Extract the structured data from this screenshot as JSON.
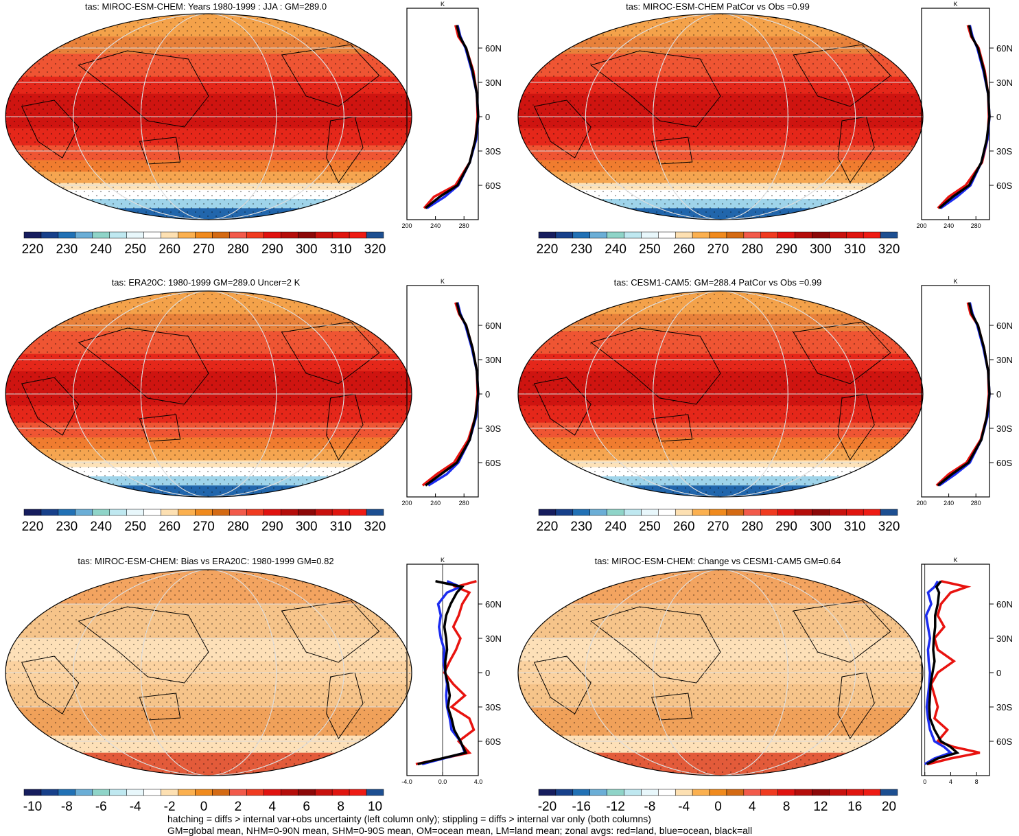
{
  "chart_data": [
    {
      "type": "heatmap",
      "title": "tas: MIROC-ESM-CHEM: Years 1980-1999 : JJA : GM=289.0",
      "colorbar": {
        "ticks": [
          "220",
          "230",
          "240",
          "250",
          "260",
          "270",
          "280",
          "290",
          "300",
          "310",
          "320"
        ],
        "palette": "absolute"
      },
      "zonal": {
        "xticks": [
          "200",
          "240",
          "280"
        ],
        "xlim": [
          200,
          300
        ],
        "xunit": "K",
        "yticks": [
          "60N",
          "30N",
          "0",
          "30S",
          "60S"
        ],
        "series": [
          {
            "name": "land",
            "color": "#e8130f",
            "lat": [
              80,
              70,
              60,
              40,
              20,
              0,
              -20,
              -40,
              -60,
              -70,
              -80
            ],
            "values": [
              268,
              272,
              283,
              293,
              298,
              299,
              296,
              288,
              268,
              238,
              224
            ]
          },
          {
            "name": "ocean",
            "color": "#1c2cf0",
            "lat": [
              80,
              70,
              60,
              40,
              20,
              0,
              -20,
              -40,
              -60,
              -70,
              -80
            ],
            "values": [
              271,
              275,
              282,
              291,
              298,
              300,
              297,
              288,
              272,
              253,
              228
            ]
          },
          {
            "name": "all",
            "color": "#000000",
            "lat": [
              80,
              70,
              60,
              40,
              20,
              0,
              -20,
              -40,
              -60,
              -70,
              -80
            ],
            "values": [
              270,
              274,
              283,
              292,
              298,
              300,
              296,
              288,
              271,
              246,
              226
            ]
          }
        ]
      }
    },
    {
      "type": "heatmap",
      "title": "tas: MIROC-ESM-CHEM PatCor vs Obs =0.99",
      "colorbar": {
        "ticks": [
          "220",
          "230",
          "240",
          "250",
          "260",
          "270",
          "280",
          "290",
          "300",
          "310",
          "320"
        ],
        "palette": "absolute"
      },
      "zonal": {
        "xticks": [
          "200",
          "240",
          "280"
        ],
        "xlim": [
          200,
          300
        ],
        "xunit": "K",
        "yticks": [
          "60N",
          "30N",
          "0",
          "30S",
          "60S"
        ],
        "series": [
          {
            "name": "land",
            "color": "#e8130f",
            "lat": [
              80,
              70,
              60,
              40,
              20,
              0,
              -20,
              -40,
              -60,
              -70,
              -80
            ],
            "values": [
              268,
              273,
              284,
              293,
              298,
              299,
              297,
              289,
              265,
              240,
              224
            ]
          },
          {
            "name": "ocean",
            "color": "#1c2cf0",
            "lat": [
              80,
              70,
              60,
              40,
              20,
              0,
              -20,
              -40,
              -60,
              -70,
              -80
            ],
            "values": [
              271,
              275,
              282,
              291,
              298,
              300,
              297,
              288,
              272,
              252,
              228
            ]
          },
          {
            "name": "all",
            "color": "#000000",
            "lat": [
              80,
              70,
              60,
              40,
              20,
              0,
              -20,
              -40,
              -60,
              -70,
              -80
            ],
            "values": [
              270,
              274,
              283,
              292,
              298,
              300,
              296,
              288,
              270,
              246,
              226
            ]
          }
        ]
      }
    },
    {
      "type": "heatmap",
      "title": "tas: ERA20C: 1980-1999 GM=289.0 Uncer=2 K",
      "colorbar": {
        "ticks": [
          "220",
          "230",
          "240",
          "250",
          "260",
          "270",
          "280",
          "290",
          "300",
          "310",
          "320"
        ],
        "palette": "absolute"
      },
      "zonal": {
        "xticks": [
          "200",
          "240",
          "280"
        ],
        "xlim": [
          200,
          300
        ],
        "xunit": "K",
        "yticks": [
          "60N",
          "30N",
          "0",
          "30S",
          "60S"
        ],
        "series": [
          {
            "name": "land",
            "color": "#e8130f",
            "lat": [
              80,
              70,
              60,
              40,
              20,
              0,
              -20,
              -40,
              -60,
              -70,
              -80
            ],
            "values": [
              268,
              273,
              283,
              292,
              298,
              299,
              296,
              286,
              266,
              242,
              222
            ]
          },
          {
            "name": "ocean",
            "color": "#1c2cf0",
            "lat": [
              80,
              70,
              60,
              40,
              20,
              0,
              -20,
              -40,
              -60,
              -70,
              -80
            ],
            "values": [
              271,
              275,
              282,
              291,
              298,
              300,
              297,
              288,
              272,
              256,
              230
            ]
          },
          {
            "name": "all",
            "color": "#000000",
            "lat": [
              80,
              70,
              60,
              40,
              20,
              0,
              -20,
              -40,
              -60,
              -70,
              -80
            ],
            "values": [
              270,
              274,
              283,
              292,
              298,
              300,
              296,
              288,
              270,
              248,
              226
            ]
          }
        ]
      }
    },
    {
      "type": "heatmap",
      "title": "tas: CESM1-CAM5: GM=288.4 PatCor vs Obs =0.99",
      "colorbar": {
        "ticks": [
          "220",
          "230",
          "240",
          "250",
          "260",
          "270",
          "280",
          "290",
          "300",
          "310",
          "320"
        ],
        "palette": "absolute"
      },
      "zonal": {
        "xticks": [
          "200",
          "240",
          "280"
        ],
        "xlim": [
          200,
          300
        ],
        "xunit": "K",
        "yticks": [
          "60N",
          "30N",
          "0",
          "30S",
          "60S"
        ],
        "series": [
          {
            "name": "land",
            "color": "#e8130f",
            "lat": [
              80,
              70,
              60,
              40,
              20,
              0,
              -20,
              -40,
              -60,
              -70,
              -80
            ],
            "values": [
              268,
              272,
              283,
              292,
              298,
              299,
              296,
              287,
              266,
              240,
              222
            ]
          },
          {
            "name": "ocean",
            "color": "#1c2cf0",
            "lat": [
              80,
              70,
              60,
              40,
              20,
              0,
              -20,
              -40,
              -60,
              -70,
              -80
            ],
            "values": [
              271,
              275,
              282,
              291,
              298,
              300,
              297,
              288,
              271,
              250,
              226
            ]
          },
          {
            "name": "all",
            "color": "#000000",
            "lat": [
              80,
              70,
              60,
              40,
              20,
              0,
              -20,
              -40,
              -60,
              -70,
              -80
            ],
            "values": [
              270,
              274,
              283,
              292,
              298,
              300,
              296,
              288,
              269,
              245,
              224
            ]
          }
        ]
      }
    },
    {
      "type": "heatmap",
      "title": "tas: MIROC-ESM-CHEM: Bias vs ERA20C: 1980-1999 GM=0.82",
      "colorbar": {
        "ticks": [
          "-10",
          "-8",
          "-6",
          "-4",
          "-2",
          "0",
          "2",
          "4",
          "6",
          "8",
          "10"
        ],
        "palette": "diff"
      },
      "zonal": {
        "xticks": [
          "-4.0",
          "0.0",
          "4.0"
        ],
        "xlim": [
          -4,
          4
        ],
        "xunit": "K",
        "yticks": [
          "60N",
          "30N",
          "0",
          "30S",
          "60S"
        ],
        "series": [
          {
            "name": "land",
            "color": "#e8130f",
            "lat": [
              80,
              75,
              70,
              60,
              50,
              40,
              30,
              20,
              10,
              0,
              -10,
              -20,
              -30,
              -40,
              -50,
              -60,
              -70,
              -80
            ],
            "values": [
              3.8,
              1.5,
              3.0,
              2.2,
              1.8,
              1.2,
              2.0,
              1.5,
              0.8,
              0.2,
              1.2,
              2.5,
              1.0,
              3.0,
              3.5,
              1.8,
              3.0,
              -3.0
            ]
          },
          {
            "name": "ocean",
            "color": "#1c2cf0",
            "lat": [
              80,
              75,
              70,
              60,
              50,
              40,
              30,
              20,
              10,
              0,
              -10,
              -20,
              -30,
              -40,
              -50,
              -60,
              -70,
              -80
            ],
            "values": [
              0.5,
              2.0,
              0.5,
              -0.5,
              -0.2,
              -0.4,
              -0.2,
              0.2,
              0.1,
              0.3,
              0.5,
              0.4,
              0.5,
              0.8,
              1.0,
              2.0,
              2.5,
              -2.3
            ]
          },
          {
            "name": "all",
            "color": "#000000",
            "lat": [
              80,
              75,
              70,
              60,
              50,
              40,
              30,
              20,
              10,
              0,
              -10,
              -20,
              -30,
              -40,
              -50,
              -60,
              -70,
              -80
            ],
            "values": [
              -0.8,
              2.2,
              1.6,
              0.9,
              0.4,
              0.2,
              0.4,
              0.5,
              0.3,
              0.3,
              0.6,
              0.8,
              0.6,
              1.0,
              1.3,
              2.0,
              2.6,
              -2.8
            ]
          }
        ]
      }
    },
    {
      "type": "heatmap",
      "title": "tas: MIROC-ESM-CHEM: Change vs CESM1-CAM5 GM=0.64",
      "colorbar": {
        "ticks": [
          "-20",
          "-16",
          "-12",
          "-8",
          "-4",
          "0",
          "4",
          "8",
          "12",
          "16",
          "20"
        ],
        "palette": "diff"
      },
      "zonal": {
        "xticks": [
          "0",
          "4",
          "8"
        ],
        "xlim": [
          -0.5,
          10
        ],
        "xunit": "K",
        "yticks": [
          "60N",
          "30N",
          "0",
          "30S",
          "60S"
        ],
        "series": [
          {
            "name": "land",
            "color": "#e8130f",
            "lat": [
              80,
              75,
              70,
              60,
              50,
              40,
              30,
              20,
              10,
              0,
              -10,
              -20,
              -30,
              -40,
              -50,
              -60,
              -65,
              -70,
              -75,
              -80
            ],
            "values": [
              2.5,
              6.5,
              4.0,
              2.5,
              2.0,
              3.0,
              1.5,
              2.0,
              4.5,
              2.0,
              1.0,
              1.5,
              2.0,
              1.5,
              3.5,
              2.0,
              4.5,
              8.5,
              4.0,
              0.5
            ]
          },
          {
            "name": "ocean",
            "color": "#1c2cf0",
            "lat": [
              80,
              75,
              70,
              60,
              50,
              40,
              30,
              20,
              10,
              0,
              -10,
              -20,
              -30,
              -40,
              -50,
              -60,
              -65,
              -70,
              -75,
              -80
            ],
            "values": [
              2.0,
              1.5,
              0.5,
              1.0,
              0.2,
              0.5,
              0.8,
              0.5,
              0.6,
              0.8,
              0.7,
              0.5,
              0.3,
              0.5,
              0.8,
              1.5,
              3.0,
              4.0,
              1.5,
              0.0
            ]
          },
          {
            "name": "all",
            "color": "#000000",
            "lat": [
              80,
              75,
              70,
              60,
              50,
              40,
              30,
              20,
              10,
              0,
              -10,
              -20,
              -30,
              -40,
              -50,
              -60,
              -65,
              -70,
              -75,
              -80
            ],
            "values": [
              2.5,
              1.8,
              2.2,
              2.0,
              1.6,
              1.6,
              1.4,
              1.3,
              1.5,
              1.2,
              0.9,
              0.8,
              0.7,
              0.8,
              1.5,
              2.5,
              4.0,
              5.0,
              2.0,
              0.3
            ]
          }
        ]
      }
    }
  ],
  "footer": {
    "line1": "hatching = diffs > internal var+obs uncertainty (left column only); stippling = diffs > internal var only (both columns)",
    "line2": "GM=global mean, NHM=0-90N mean, SHM=0-90S mean, OM=ocean mean, LM=land mean; zonal avgs: red=land, blue=ocean, black=all"
  },
  "palettes": {
    "absolute": [
      "#161d5e",
      "#17408a",
      "#2171b5",
      "#6baed6",
      "#8fd4c8",
      "#bfe8f0",
      "#e8f7fb",
      "#ffffff",
      "#fde0b2",
      "#fbb04f",
      "#f08a1d",
      "#d46a13",
      "#f25a4a",
      "#f03b20",
      "#e0120f",
      "#b50d0a",
      "#8c0808",
      "#c8110d",
      "#e0150f",
      "#ee1b14",
      "#1d4f91"
    ],
    "diff": [
      "#161d5e",
      "#17408a",
      "#2171b5",
      "#6baed6",
      "#8fd4c8",
      "#bfe8f0",
      "#e8f7fb",
      "#ffffff",
      "#fde0b2",
      "#fbb04f",
      "#f08a1d",
      "#d46a13",
      "#f25a4a",
      "#f03b20",
      "#e0120f",
      "#b50d0a",
      "#8c0808",
      "#c8110d",
      "#e0150f",
      "#ee1b14",
      "#1d4f91"
    ]
  }
}
